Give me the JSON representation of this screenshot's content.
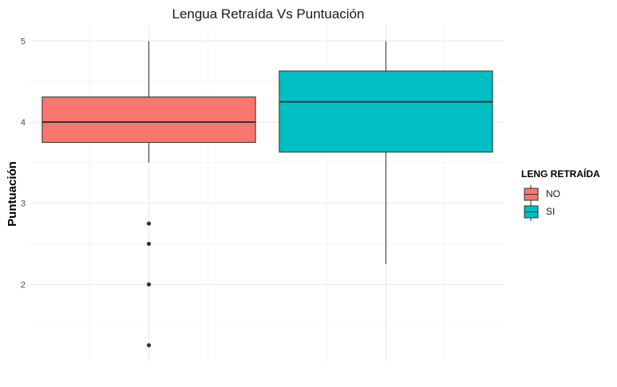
{
  "chart_data": {
    "type": "boxplot",
    "title": "Lengua Retraída Vs Puntuación",
    "xlabel": "",
    "ylabel": "Puntuación",
    "ylim": [
      1.05,
      5.2
    ],
    "y_ticks": [
      "2",
      "3",
      "4",
      "5"
    ],
    "grid": true,
    "legend": {
      "title": "LENG RETRAÍDA",
      "position": "right"
    },
    "series": [
      {
        "name": "NO",
        "color": "#F8766D",
        "min": 3.5,
        "q1": 3.75,
        "median": 4.0,
        "q3": 4.31,
        "max": 5.0,
        "outliers": [
          2.75,
          2.5,
          2.0,
          1.25
        ]
      },
      {
        "name": "SI",
        "color": "#00BFC4",
        "min": 2.25,
        "q1": 3.63,
        "median": 4.25,
        "q3": 4.63,
        "max": 5.0,
        "outliers": []
      }
    ]
  }
}
